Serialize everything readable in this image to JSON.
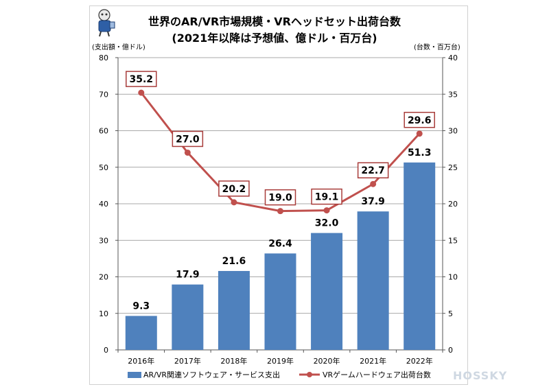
{
  "chart_data": {
    "type": "bar+line",
    "title": "世界のAR/VR市場規模・VRヘッドセット出荷台数",
    "subtitle": "(2021年以降は予想値、億ドル・百万台)",
    "categories": [
      "2016年",
      "2017年",
      "2018年",
      "2019年",
      "2020年",
      "2021年",
      "2022年"
    ],
    "y_left": {
      "label": "(支出額・億ドル)",
      "range": [
        0,
        80
      ],
      "ticks": [
        "0",
        "10",
        "20",
        "30",
        "40",
        "50",
        "60",
        "70",
        "80"
      ]
    },
    "y_right": {
      "label": "(台数・百万台)",
      "range": [
        0,
        40
      ],
      "ticks": [
        "0",
        "5",
        "10",
        "15",
        "20",
        "25",
        "30",
        "35",
        "40"
      ]
    },
    "series": [
      {
        "name": "AR/VR関連ソフトウェア・サービス支出",
        "kind": "bar",
        "axis": "left",
        "color": "#4f81bd",
        "values": [
          9.3,
          17.9,
          21.6,
          26.4,
          32.0,
          37.9,
          51.3
        ],
        "labels": [
          "9.3",
          "17.9",
          "21.6",
          "26.4",
          "32.0",
          "37.9",
          "51.3"
        ]
      },
      {
        "name": "VRゲームハードウェア出荷台数",
        "kind": "line",
        "axis": "right",
        "color": "#c0504d",
        "values": [
          35.2,
          27.0,
          20.2,
          19.0,
          19.1,
          22.7,
          29.6
        ],
        "labels": [
          "35.2",
          "27.0",
          "20.2",
          "19.0",
          "19.1",
          "22.7",
          "29.6"
        ]
      }
    ],
    "grid": true,
    "legend": "bottom"
  },
  "watermark": "HOSSKY"
}
